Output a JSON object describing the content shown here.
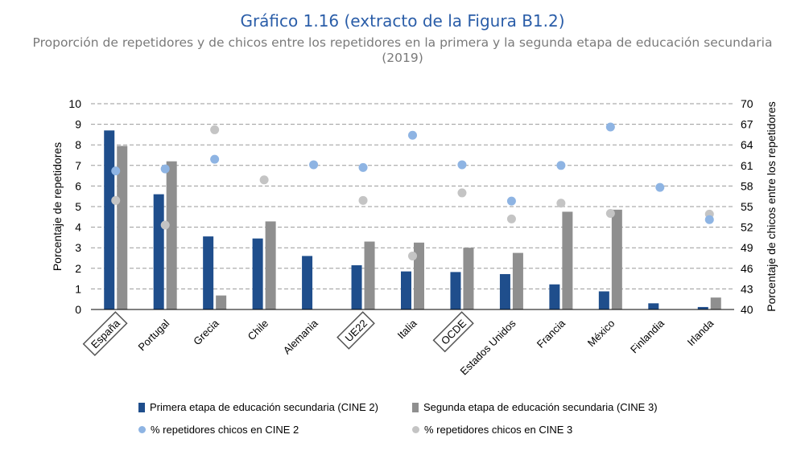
{
  "title": "Gráfico 1.16 (extracto de la Figura B1.2)",
  "subtitle_line1": "Proporción de repetidores y de chicos entre los repetidores en la primera y la segunda etapa de educación secundaria",
  "subtitle_line2": "(2019)",
  "colors": {
    "cine2_bar": "#1f4e8c",
    "cine3_bar": "#8f8f8f",
    "cine2_dot": "#8eb4e3",
    "cine3_dot": "#c4c4c4",
    "title": "#2a5da8",
    "subtitle": "#7a7a7a"
  },
  "chart_data": {
    "type": "bar",
    "title": "Gráfico 1.16 (extracto de la Figura B1.2)",
    "ylabel": "Porcentaje de repetidores",
    "y2label": "Porcentaje de chicos entre los repetidores",
    "ylim": [
      0,
      10
    ],
    "y2lim": [
      40,
      70
    ],
    "yticks": [
      "0",
      "1",
      "2",
      "3",
      "4",
      "5",
      "6",
      "7",
      "8",
      "9",
      "10"
    ],
    "y2ticks": [
      "40",
      "43",
      "46",
      "49",
      "52",
      "55",
      "58",
      "61",
      "64",
      "67",
      "70"
    ],
    "grid": true,
    "legend_position": "bottom",
    "categories": [
      "España",
      "Portugal",
      "Grecia",
      "Chile",
      "Alemania",
      "UE22",
      "Italia",
      "OCDE",
      "Estados Unidos",
      "Francia",
      "México",
      "Finlandia",
      "Irlanda"
    ],
    "boxed_categories": [
      "España",
      "UE22",
      "OCDE"
    ],
    "series": [
      {
        "name": "Primera etapa de educación secundaria (CINE 2)",
        "kind": "bar",
        "axis": "left",
        "values": [
          8.7,
          5.6,
          3.55,
          3.45,
          2.6,
          2.15,
          1.85,
          1.82,
          1.72,
          1.22,
          0.88,
          0.3,
          0.12
        ]
      },
      {
        "name": "Segunda etapa de educación secundaria (CINE 3)",
        "kind": "bar",
        "axis": "left",
        "values": [
          7.95,
          7.2,
          0.68,
          4.28,
          null,
          3.3,
          3.25,
          3.0,
          2.75,
          4.75,
          4.85,
          null,
          0.58
        ]
      },
      {
        "name": "% repetidores chicos en CINE 2",
        "kind": "point",
        "axis": "right",
        "values": [
          60.2,
          60.5,
          61.9,
          null,
          61.1,
          60.7,
          65.4,
          61.1,
          55.8,
          61.0,
          66.6,
          57.8,
          53.1
        ]
      },
      {
        "name": "% repetidores chicos en CINE 3",
        "kind": "point",
        "axis": "right",
        "values": [
          55.9,
          52.3,
          66.2,
          58.9,
          null,
          55.9,
          47.8,
          57.0,
          53.2,
          55.5,
          54.0,
          null,
          53.9
        ]
      }
    ]
  }
}
